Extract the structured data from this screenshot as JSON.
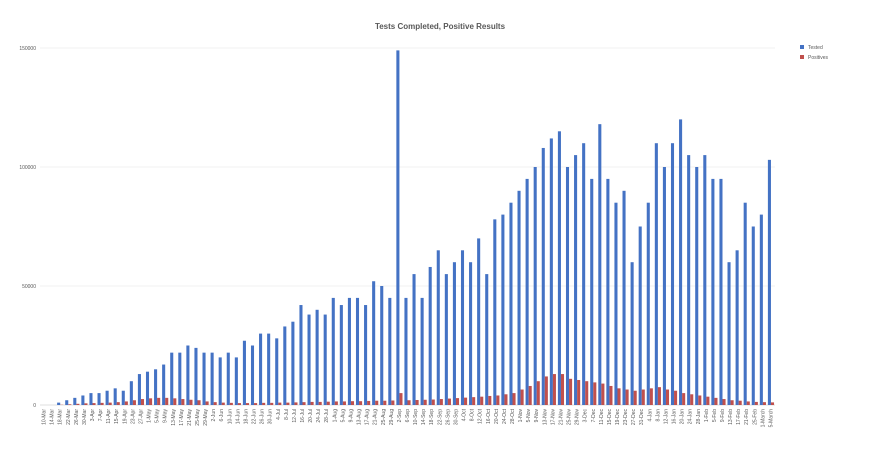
{
  "chart_data": {
    "type": "bar",
    "title": "Tests Completed, Positive Results",
    "xlabel": "",
    "ylabel": "",
    "ylim": [
      0,
      150000
    ],
    "yticks": [
      0,
      50000,
      100000,
      150000
    ],
    "grid": true,
    "legend_position": "top-right",
    "colors": {
      "Tested": "#4472C4",
      "Positives": "#C0504D"
    },
    "categories": [
      "10-Mar",
      "14-Mar",
      "18-Mar",
      "22-Mar",
      "26-Mar",
      "30-Mar",
      "3-Apr",
      "7-Apr",
      "11-Apr",
      "15-Apr",
      "19-Apr",
      "23-Apr",
      "27-Apr",
      "1-May",
      "5-May",
      "9-May",
      "13-May",
      "17-May",
      "21-May",
      "25-May",
      "29-May",
      "2-Jun",
      "6-Jun",
      "10-Jun",
      "14-Jun",
      "18-Jun",
      "22-Jun",
      "26-Jun",
      "30-Jun",
      "4-Jul",
      "8-Jul",
      "12-Jul",
      "16-Jul",
      "20-Jul",
      "24-Jul",
      "28-Jul",
      "1-Aug",
      "5-Aug",
      "9-Aug",
      "13-Aug",
      "17-Aug",
      "21-Aug",
      "25-Aug",
      "29-Aug",
      "2-Sep",
      "6-Sep",
      "10-Sep",
      "14-Sep",
      "18-Sep",
      "22-Sep",
      "26-Sep",
      "30-Sep",
      "4-Oct",
      "8-Oct",
      "12-Oct",
      "16-Oct",
      "20-Oct",
      "24-Oct",
      "28-Oct",
      "1-Nov",
      "5-Nov",
      "9-Nov",
      "13-Nov",
      "17-Nov",
      "21-Nov",
      "25-Nov",
      "29-Nov",
      "3-Dec",
      "7-Dec",
      "11-Dec",
      "15-Dec",
      "19-Dec",
      "23-Dec",
      "27-Dec",
      "31-Dec",
      "4-Jan",
      "8-Jan",
      "12-Jan",
      "16-Jan",
      "20-Jan",
      "24-Jan",
      "28-Jan",
      "1-Feb",
      "5-Feb",
      "9-Feb",
      "13-Feb",
      "17-Feb",
      "21-Feb",
      "25-Feb",
      "1-March",
      "5-March"
    ],
    "series": [
      {
        "name": "Tested",
        "values": [
          0,
          0,
          1000,
          2000,
          3000,
          4000,
          5000,
          5000,
          6000,
          7000,
          6000,
          10000,
          13000,
          14000,
          15000,
          17000,
          22000,
          22000,
          25000,
          24000,
          22000,
          22000,
          20000,
          22000,
          20000,
          27000,
          25000,
          30000,
          30000,
          28000,
          33000,
          35000,
          42000,
          38000,
          40000,
          38000,
          45000,
          42000,
          45000,
          45000,
          42000,
          52000,
          50000,
          45000,
          149000,
          45000,
          55000,
          45000,
          58000,
          65000,
          55000,
          60000,
          65000,
          60000,
          70000,
          55000,
          78000,
          80000,
          85000,
          90000,
          95000,
          100000,
          108000,
          112000,
          115000,
          100000,
          105000,
          110000,
          95000,
          118000,
          95000,
          85000,
          90000,
          60000,
          75000,
          85000,
          110000,
          100000,
          110000,
          120000,
          105000,
          100000,
          105000,
          95000,
          95000,
          60000,
          65000,
          85000,
          75000,
          80000,
          103000
        ]
      },
      {
        "name": "Positives",
        "values": [
          0,
          0,
          100,
          300,
          500,
          700,
          800,
          900,
          1000,
          1200,
          1500,
          2000,
          2500,
          2800,
          3000,
          3000,
          2800,
          2500,
          2200,
          2000,
          1500,
          1200,
          1000,
          900,
          800,
          800,
          800,
          900,
          900,
          1000,
          1000,
          1100,
          1200,
          1300,
          1300,
          1400,
          1500,
          1500,
          1600,
          1600,
          1700,
          1800,
          1800,
          1900,
          5000,
          2000,
          2100,
          2200,
          2300,
          2500,
          2700,
          2900,
          3100,
          3300,
          3500,
          3800,
          4000,
          4500,
          5000,
          6500,
          8000,
          10000,
          12000,
          13000,
          13000,
          11000,
          10500,
          10000,
          9500,
          9000,
          8000,
          7000,
          6500,
          6000,
          6500,
          7000,
          7500,
          6500,
          6000,
          5000,
          4500,
          4000,
          3500,
          3000,
          2500,
          2000,
          1800,
          1500,
          1300,
          1200,
          1100
        ]
      }
    ]
  }
}
